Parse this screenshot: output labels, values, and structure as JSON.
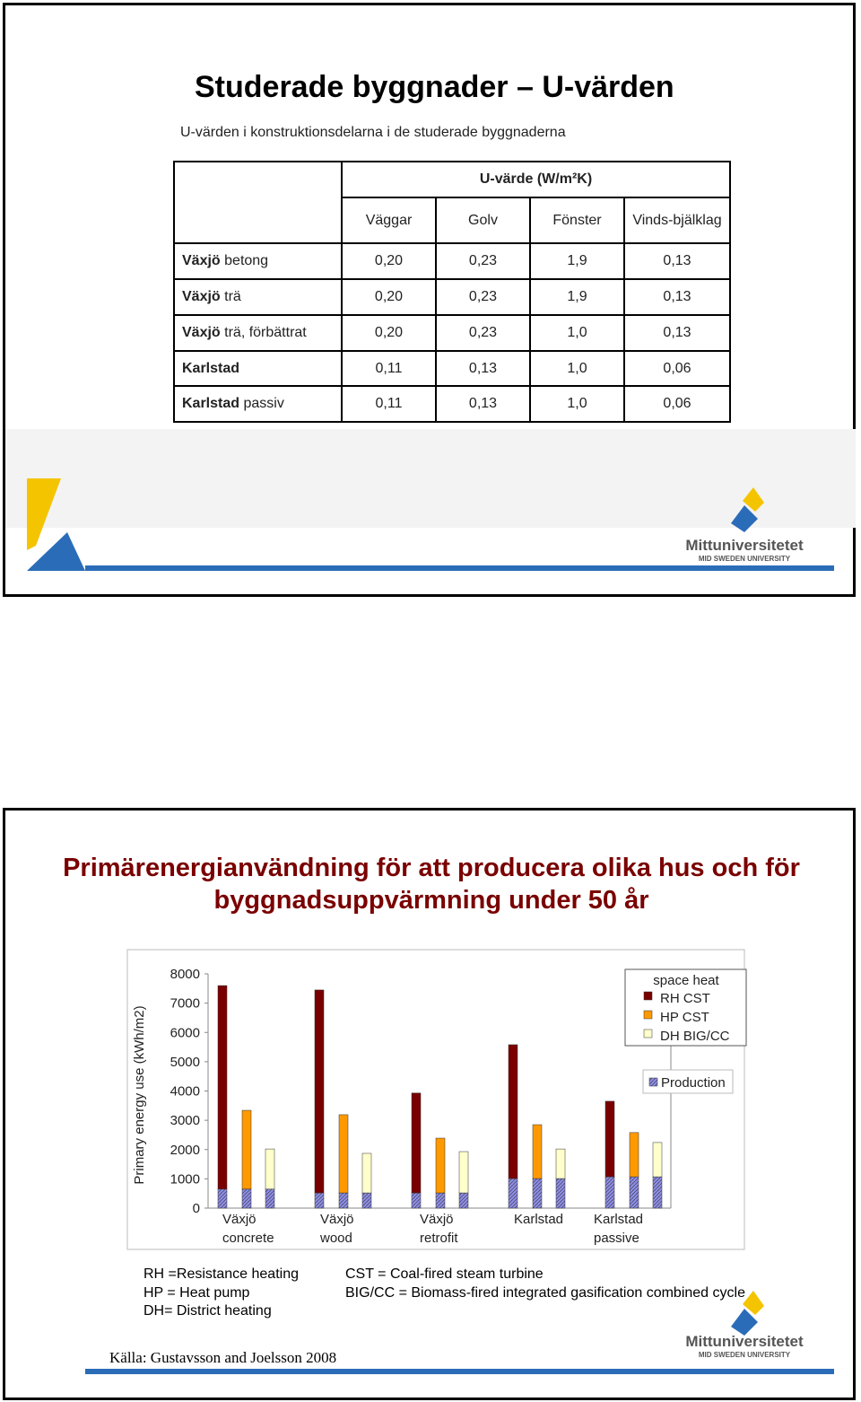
{
  "slide1": {
    "title": "Studerade byggnader – U-värden",
    "subtitle": "U-värden i konstruktionsdelarna i de studerade byggnaderna",
    "table": {
      "group_header": "U-värde (W/m²K)",
      "columns": [
        "Väggar",
        "Golv",
        "Fönster",
        "Vinds-bjälklag"
      ],
      "rows": [
        {
          "place": "Växjö",
          "desc": "betong",
          "values": [
            "0,20",
            "0,23",
            "1,9",
            "0,13"
          ]
        },
        {
          "place": "Växjö",
          "desc": "trä",
          "values": [
            "0,20",
            "0,23",
            "1,9",
            "0,13"
          ]
        },
        {
          "place": "Växjö",
          "desc": "trä, förbättrat",
          "values": [
            "0,20",
            "0,23",
            "1,0",
            "0,13"
          ]
        },
        {
          "place": "Karlstad",
          "values": [
            "0,11",
            "0,13",
            "1,0",
            "0,06"
          ]
        },
        {
          "place": "Karlstad",
          "desc": "passiv",
          "values": [
            "0,11",
            "0,13",
            "1,0",
            "0,06"
          ]
        }
      ]
    }
  },
  "logo": {
    "name": "Mittuniversitetet",
    "tagline": "MID SWEDEN UNIVERSITY"
  },
  "slide2": {
    "title": "Primärenergianvändning för att producera olika hus och för byggnadsuppvärmning under 50 år",
    "notes_left": [
      "RH =Resistance heating",
      "HP = Heat pump",
      "DH= District heating"
    ],
    "notes_right": [
      "CST = Coal-fired steam turbine",
      "BIG/CC = Biomass-fired integrated gasification combined cycle"
    ],
    "source": "Källa: Gustavsson and Joelsson 2008"
  },
  "chart_data": {
    "type": "stacked-bar",
    "y_label": "Primary energy use (kWh/m2)",
    "categories": [
      "Växjö concrete",
      "Växjö wood",
      "Växjö retrofit",
      "Karlstad",
      "Karlstad passive"
    ],
    "ylim": [
      0,
      8000
    ],
    "yticks": [
      0,
      1000,
      2000,
      3000,
      4000,
      5000,
      6000,
      7000,
      8000
    ],
    "production": {
      "name": "Production",
      "color": "#8c8ce6",
      "values": [
        [
          650,
          650,
          650
        ],
        [
          520,
          520,
          520
        ],
        [
          520,
          520,
          520
        ],
        [
          1010,
          1010,
          1010
        ],
        [
          1070,
          1070,
          1070
        ]
      ]
    },
    "space_heat": {
      "title": "space heat",
      "series": [
        {
          "name": "RH CST",
          "color": "#7a0000",
          "values": [
            6950,
            6930,
            3410,
            4570,
            2580
          ]
        },
        {
          "name": "HP CST",
          "color": "#ff9900",
          "values": [
            2690,
            2670,
            1870,
            1840,
            1510
          ]
        },
        {
          "name": "DH BIG/CC",
          "color": "#ffffcc",
          "values": [
            1370,
            1350,
            1410,
            1010,
            1170
          ]
        }
      ]
    }
  }
}
